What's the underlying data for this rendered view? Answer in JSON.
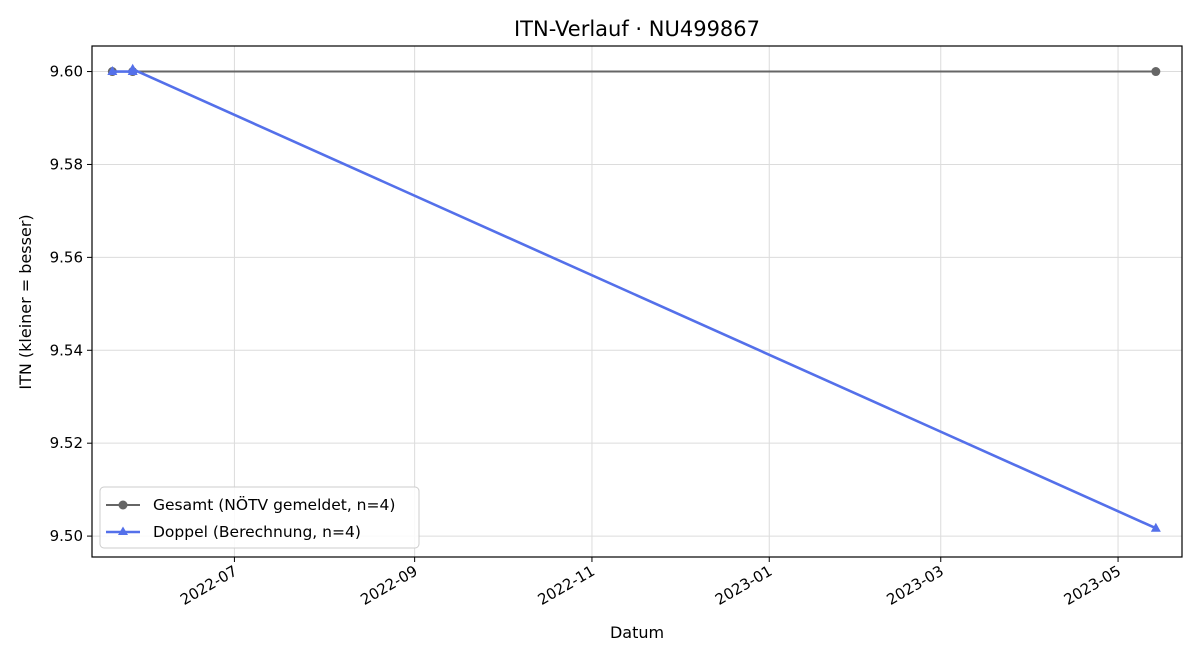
{
  "chart_data": {
    "type": "line",
    "title": "ITN-Verlauf · NU499867",
    "xlabel": "Datum",
    "ylabel": "ITN  (kleiner = besser)",
    "x_type": "date",
    "xlim": [
      "2022-05-13",
      "2023-05-23"
    ],
    "ylim": [
      9.4955,
      9.6055
    ],
    "x_ticks": [
      "2022-07-01",
      "2022-09-01",
      "2022-11-01",
      "2023-01-01",
      "2023-03-01",
      "2023-05-01"
    ],
    "x_tick_labels": [
      "2022-07",
      "2022-09",
      "2022-11",
      "2023-01",
      "2023-03",
      "2023-05"
    ],
    "y_ticks": [
      9.5,
      9.52,
      9.54,
      9.56,
      9.58,
      9.6
    ],
    "y_tick_labels": [
      "9.50",
      "9.52",
      "9.54",
      "9.56",
      "9.58",
      "9.60"
    ],
    "grid": true,
    "legend_position": "lower-left",
    "series": [
      {
        "name": "Gesamt (NÖTV gemeldet, n=4)",
        "color": "#666666",
        "marker": "circle",
        "x": [
          "2022-05-20",
          "2022-05-27",
          "2023-05-14"
        ],
        "y": [
          9.6,
          9.6,
          9.6
        ]
      },
      {
        "name": "Doppel (Berechnung, n=4)",
        "color": "#5470ea",
        "marker": "triangle",
        "x": [
          "2022-05-20",
          "2022-05-27",
          "2022-05-27",
          "2023-05-14"
        ],
        "y": [
          9.6,
          9.6,
          9.6005,
          9.5017
        ]
      }
    ]
  }
}
